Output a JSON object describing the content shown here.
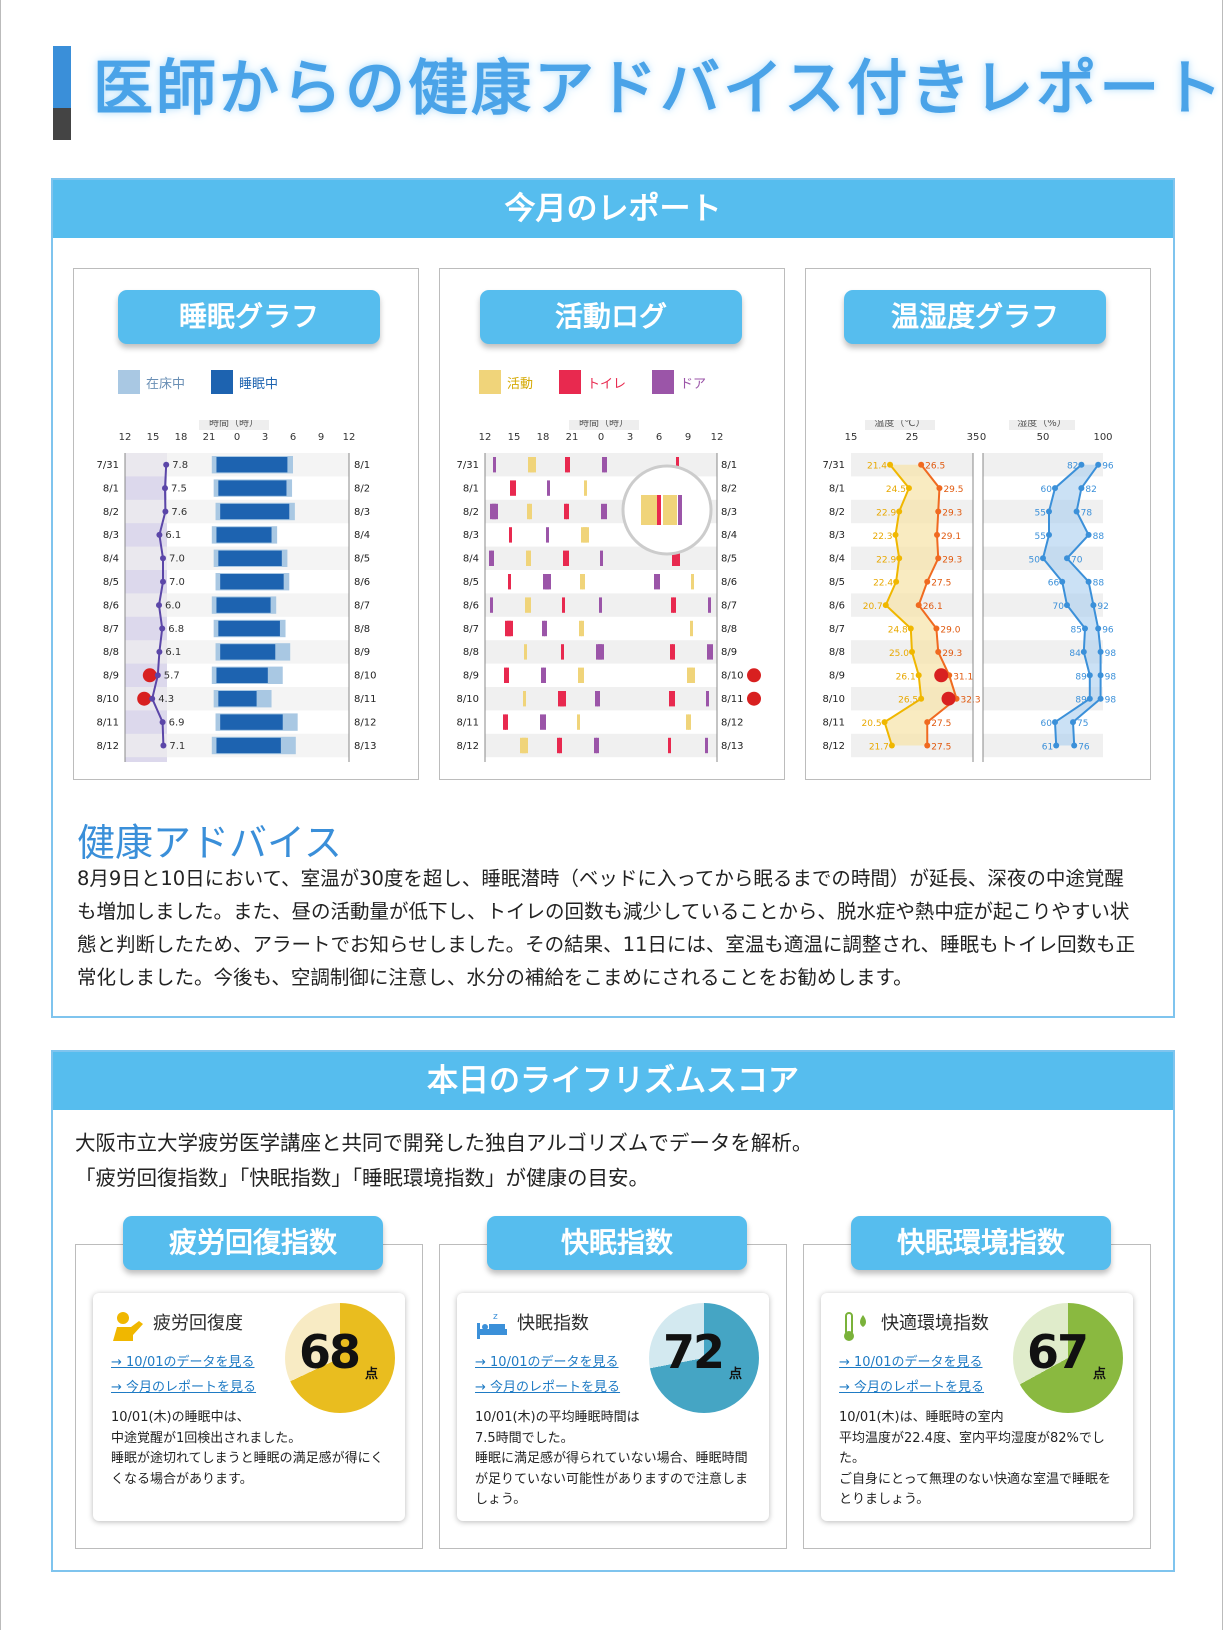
{
  "page_title": "医師からの健康アドバイス付きレポート",
  "monthly": {
    "header": "今月のレポート",
    "sleep": {
      "title": "睡眠グラフ",
      "legend": [
        "在床中",
        "睡眠中"
      ],
      "axis_title": "時間（時）",
      "ticks": [
        "12",
        "15",
        "18",
        "21",
        "0",
        "3",
        "6",
        "9",
        "12"
      ],
      "rows": [
        {
          "l": "7/31",
          "r": "8/1",
          "v": "7.8"
        },
        {
          "l": "8/1",
          "r": "8/2",
          "v": "7.5"
        },
        {
          "l": "8/2",
          "r": "8/3",
          "v": "7.6"
        },
        {
          "l": "8/3",
          "r": "8/4",
          "v": "6.1"
        },
        {
          "l": "8/4",
          "r": "8/5",
          "v": "7.0"
        },
        {
          "l": "8/5",
          "r": "8/6",
          "v": "7.0"
        },
        {
          "l": "8/6",
          "r": "8/7",
          "v": "6.0"
        },
        {
          "l": "8/7",
          "r": "8/8",
          "v": "6.8"
        },
        {
          "l": "8/8",
          "r": "8/9",
          "v": "6.1"
        },
        {
          "l": "8/9",
          "r": "8/10",
          "v": "5.7"
        },
        {
          "l": "8/10",
          "r": "8/11",
          "v": "4.3"
        },
        {
          "l": "8/11",
          "r": "8/12",
          "v": "6.9"
        },
        {
          "l": "8/12",
          "r": "8/13",
          "v": "7.1"
        }
      ]
    },
    "activity": {
      "title": "活動ログ",
      "legend": [
        "活動",
        "トイレ",
        "ドア"
      ],
      "axis_title": "時間（時）",
      "ticks": [
        "12",
        "15",
        "18",
        "21",
        "0",
        "3",
        "6",
        "9",
        "12"
      ],
      "left": [
        "7/31",
        "8/1",
        "8/2",
        "8/3",
        "8/4",
        "8/5",
        "8/6",
        "8/7",
        "8/8",
        "8/9",
        "8/10",
        "8/11",
        "8/12"
      ],
      "right": [
        "8/1",
        "8/2",
        "8/3",
        "8/4",
        "8/5",
        "8/6",
        "8/7",
        "8/8",
        "8/9",
        "8/10",
        "8/11",
        "8/12",
        "8/13"
      ]
    },
    "temp": {
      "title": "温湿度グラフ",
      "temp_axis_title": "温度（℃）",
      "hum_axis_title": "湿度（%）",
      "temp_ticks": [
        "15",
        "25",
        "35"
      ],
      "hum_ticks": [
        "0",
        "50",
        "100"
      ],
      "dates": [
        "7/31",
        "8/1",
        "8/2",
        "8/3",
        "8/4",
        "8/5",
        "8/6",
        "8/7",
        "8/8",
        "8/9",
        "8/10",
        "8/11",
        "8/12"
      ],
      "temp_min": [
        "21.4",
        "24.5",
        "22.9",
        "22.3",
        "22.9",
        "22.4",
        "20.7",
        "24.8",
        "25.0",
        "26.1",
        "26.5",
        "20.5",
        "21.7"
      ],
      "temp_max": [
        "26.5",
        "29.5",
        "29.3",
        "29.1",
        "29.3",
        "27.5",
        "26.1",
        "29.0",
        "29.3",
        "31.1",
        "32.3",
        "27.5",
        "27.5"
      ],
      "hum_min": [
        "82",
        "60",
        "55",
        "55",
        "50",
        "66",
        "70",
        "85",
        "84",
        "89",
        "89",
        "60",
        "61"
      ],
      "hum_max": [
        "96",
        "82",
        "78",
        "88",
        "70",
        "88",
        "92",
        "96",
        "98",
        "98",
        "98",
        "75",
        "76"
      ]
    },
    "advice_title": "健康アドバイス",
    "advice_text": "8月9日と10日において、室温が30度を超し、睡眠潜時（ベッドに入ってから眠るまでの時間）が延長、深夜の中途覚醒も増加しました。また、昼の活動量が低下し、トイレの回数も減少していることから、脱水症や熱中症が起こりやすい状態と判断したため、アラートでお知らせしました。その結果、11日には、室温も適温に調整され、睡眠もトイレ回数も正常化しました。今後も、空調制御に注意し、水分の補給をこまめにされることをお勧めします。"
  },
  "score": {
    "header": "本日のライフリズムスコア",
    "intro1": "大阪市立大学疲労医学講座と共同で開発した独自アルゴリズムでデータを解析。",
    "intro2": "「疲労回復指数」「快眠指数」「睡眠環境指数」が健康の目安。",
    "cards": [
      {
        "pill": "疲労回復指数",
        "name": "疲労回復度",
        "score": "68",
        "unit": "点",
        "link1": "10/01のデータを見る",
        "link2": "今月のレポートを見る",
        "desc": "10/01(木)の睡眠中は、\n中途覚醒が1回検出されました。\n睡眠が途切れてしまうと睡眠の満足感が得にくくなる場合があります。",
        "color": "#e9bd1f",
        "bg": "#f8ebc4",
        "pct": 68
      },
      {
        "pill": "快眠指数",
        "name": "快眠指数",
        "score": "72",
        "unit": "点",
        "link1": "10/01のデータを見る",
        "link2": "今月のレポートを見る",
        "desc": "10/01(木)の平均睡眠時間は\n7.5時間でした。\n睡眠に満足感が得られていない場合、睡眠時間が足りていない可能性がありますので注意しましょう。",
        "color": "#45a5c4",
        "bg": "#d3e9f0",
        "pct": 72
      },
      {
        "pill": "快眠環境指数",
        "name": "快適環境指数",
        "score": "67",
        "unit": "点",
        "link1": "10/01のデータを見る",
        "link2": "今月のレポートを見る",
        "desc": "10/01(木)は、睡眠時の室内\n平均温度が22.4度、室内平均湿度が82%でした。\nご自身にとって無理のない快適な室温で睡眠をとりましょう。",
        "color": "#8ab940",
        "bg": "#e0eccb",
        "pct": 67
      }
    ]
  }
}
